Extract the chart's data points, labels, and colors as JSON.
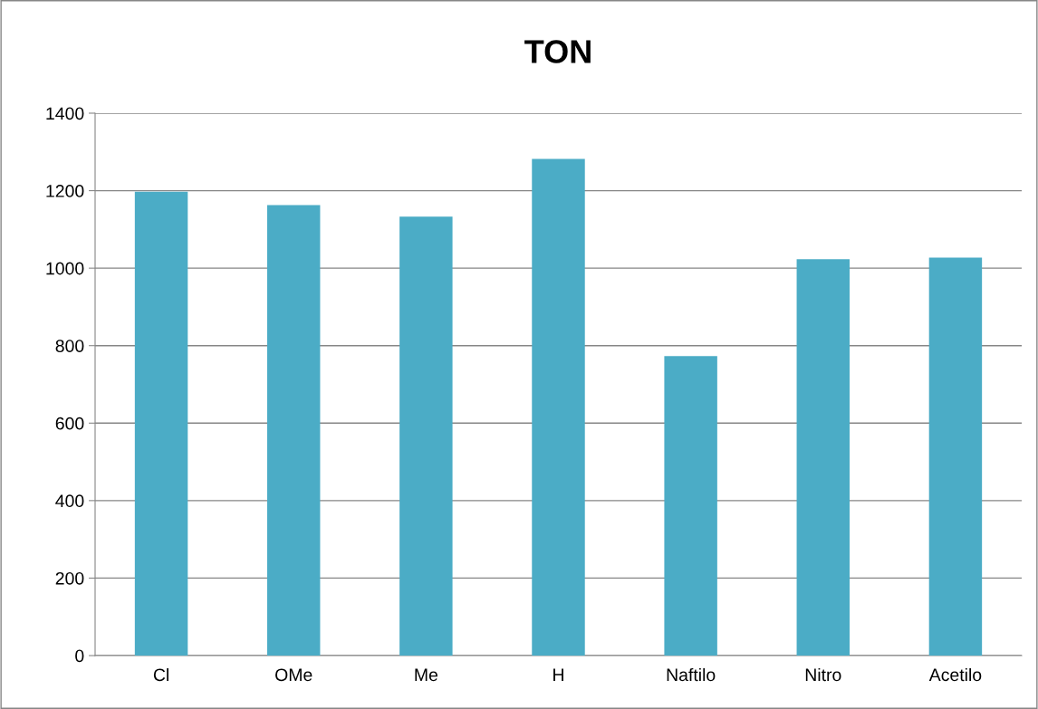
{
  "chart_data": {
    "type": "bar",
    "title": "TON",
    "categories": [
      "Cl",
      "OMe",
      "Me",
      "H",
      "Naftilo",
      "Nitro",
      "Acetilo"
    ],
    "values": [
      1197,
      1163,
      1133,
      1282,
      773,
      1023,
      1027
    ],
    "color": "#4bacc6",
    "ylim": [
      0,
      1400
    ],
    "yticks": [
      0,
      200,
      400,
      600,
      800,
      1000,
      1200,
      1400
    ],
    "grid": "y",
    "legend": false
  }
}
